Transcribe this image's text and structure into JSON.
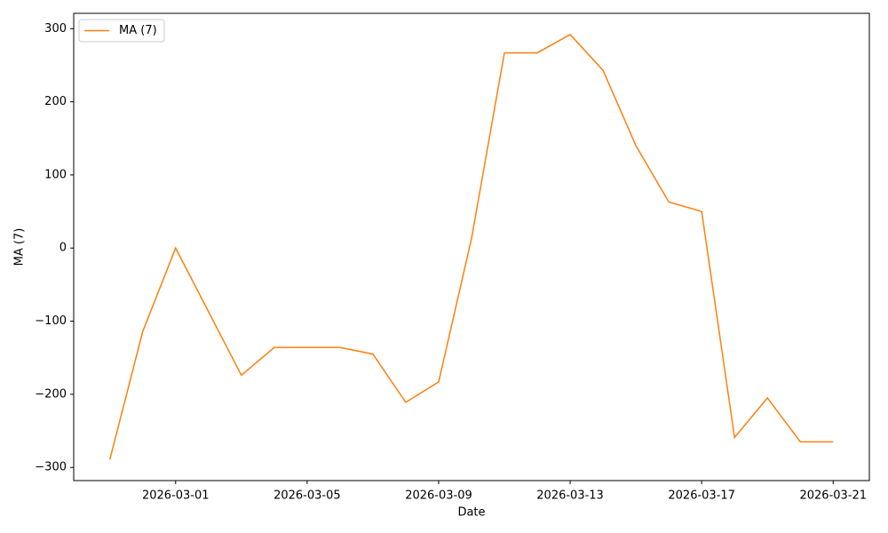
{
  "chart_data": {
    "type": "line",
    "x_label": "Date",
    "y_label": "MA (7)",
    "x": [
      "2026-02-27",
      "2026-02-28",
      "2026-03-01",
      "2026-03-02",
      "2026-03-03",
      "2026-03-04",
      "2026-03-05",
      "2026-03-06",
      "2026-03-07",
      "2026-03-08",
      "2026-03-09",
      "2026-03-10",
      "2026-03-11",
      "2026-03-12",
      "2026-03-13",
      "2026-03-14",
      "2026-03-15",
      "2026-03-16",
      "2026-03-17",
      "2026-03-18",
      "2026-03-19",
      "2026-03-20",
      "2026-03-21"
    ],
    "series": [
      {
        "name": "MA (7)",
        "color": "#ff7f0e",
        "values": [
          -289,
          -114,
          0,
          -87,
          -174,
          -136,
          -136,
          -136,
          -145,
          -211,
          -183,
          13,
          267,
          267,
          292,
          243,
          140,
          63,
          50,
          -259,
          -205,
          -265,
          -265
        ]
      }
    ],
    "xticks": [
      "2026-03-01",
      "2026-03-05",
      "2026-03-09",
      "2026-03-13",
      "2026-03-17",
      "2026-03-21"
    ],
    "ylim": [
      -318,
      321
    ],
    "yticks": [
      {
        "value": -300,
        "label": "−300"
      },
      {
        "value": -200,
        "label": "−200"
      },
      {
        "value": -100,
        "label": "−100"
      },
      0,
      100,
      200,
      300
    ],
    "legend": "upper left"
  }
}
